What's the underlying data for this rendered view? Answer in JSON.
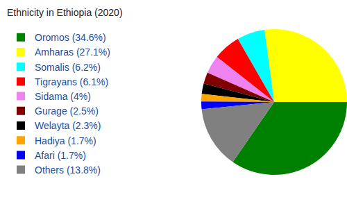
{
  "chart_data": {
    "type": "pie",
    "title": "Ethnicity in Ethiopia (2020)",
    "categories": [
      "Oromos (34.6%)",
      "Amharas (27.1%)",
      "Somalis (6.2%)",
      "Tigrayans (6.1%)",
      "Sidama (4%)",
      "Gurage (2.5%)",
      "Welayta (2.3%)",
      "Hadiya (1.7%)",
      "Afari (1.7%)",
      "Others (13.8%)"
    ],
    "values": [
      34.6,
      27.1,
      6.2,
      6.1,
      4,
      2.5,
      2.3,
      1.7,
      1.7,
      13.8
    ],
    "colors": [
      "#008000",
      "#ffff00",
      "#00ffff",
      "#ff0000",
      "#ee82ee",
      "#800000",
      "#000000",
      "#ffa500",
      "#0000ff",
      "#808080"
    ],
    "legend": "left"
  }
}
